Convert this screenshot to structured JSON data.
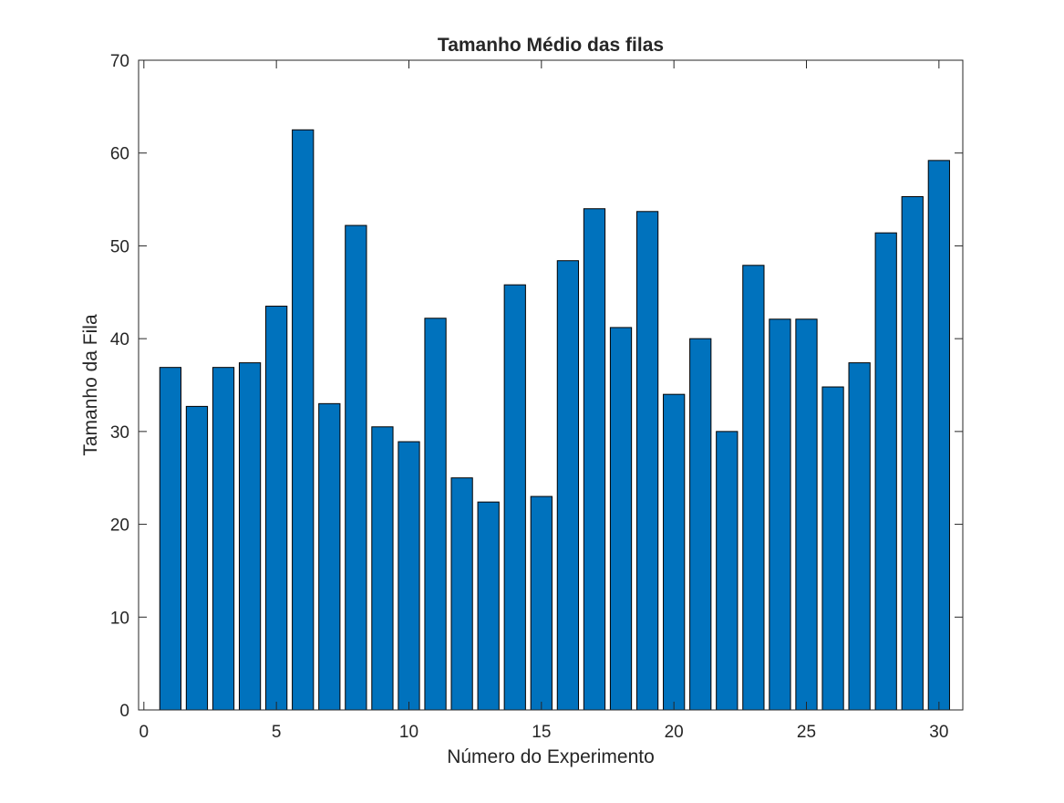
{
  "chart_data": {
    "type": "bar",
    "title": "Tamanho Médio das filas",
    "xlabel": "Número do Experimento",
    "ylabel": "Tamanho da Fila",
    "xlim": [
      -0.2,
      30.9
    ],
    "ylim": [
      0,
      70
    ],
    "xticks": [
      0,
      5,
      10,
      15,
      20,
      25,
      30
    ],
    "xtick_labels": [
      "0",
      "5",
      "10",
      "15",
      "20",
      "25",
      "30"
    ],
    "yticks": [
      0,
      10,
      20,
      30,
      40,
      50,
      60,
      70
    ],
    "ytick_labels": [
      "0",
      "10",
      "20",
      "30",
      "40",
      "50",
      "60",
      "70"
    ],
    "grid": false,
    "bar_color": "#0072BD",
    "edge_color": "#000000",
    "x": [
      1,
      2,
      3,
      4,
      5,
      6,
      7,
      8,
      9,
      10,
      11,
      12,
      13,
      14,
      15,
      16,
      17,
      18,
      19,
      20,
      21,
      22,
      23,
      24,
      25,
      26,
      27,
      28,
      29,
      30
    ],
    "values": [
      36.9,
      32.7,
      36.9,
      37.4,
      43.5,
      62.5,
      33.0,
      52.2,
      30.5,
      28.9,
      42.2,
      25.0,
      22.4,
      45.8,
      23.0,
      48.4,
      54.0,
      41.2,
      53.7,
      34.0,
      40.0,
      30.0,
      47.9,
      42.1,
      42.1,
      34.8,
      37.4,
      51.4,
      55.3,
      59.2
    ]
  }
}
